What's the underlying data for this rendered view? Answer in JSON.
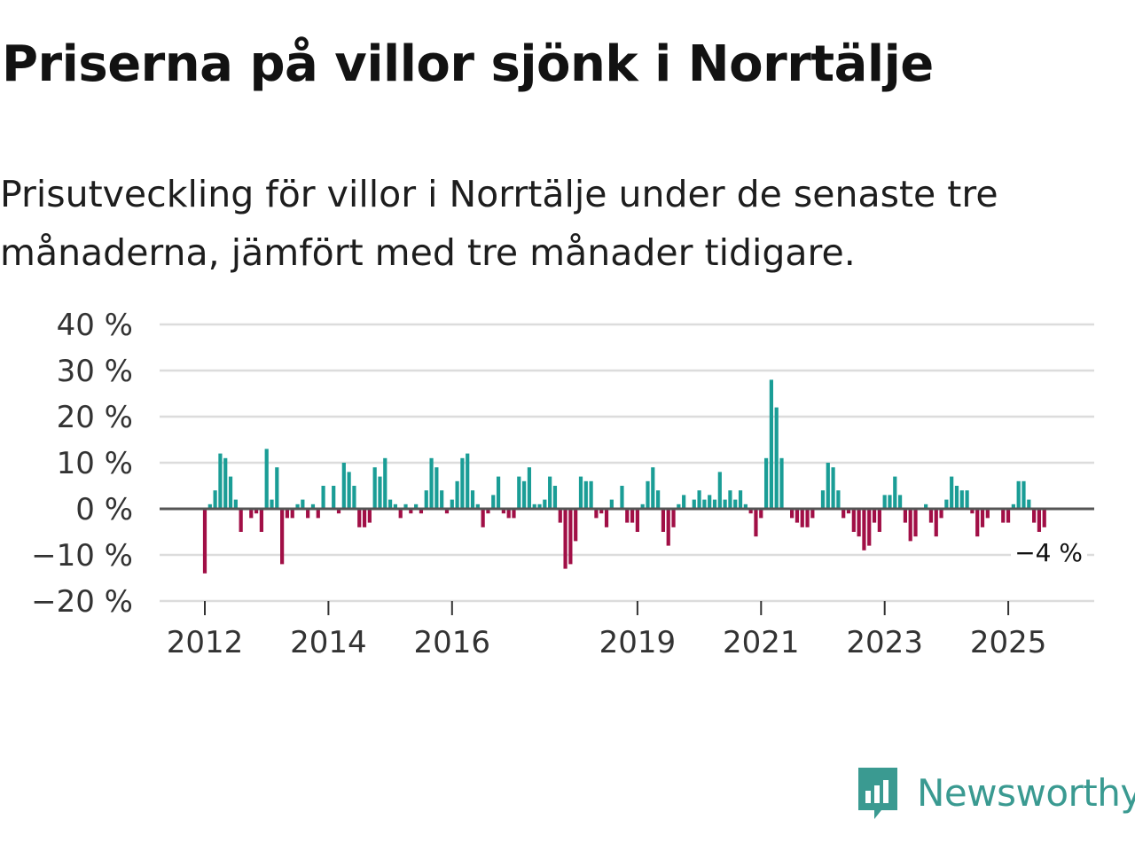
{
  "header": {
    "title": "Priserna på villor sjönk i Norrtälje",
    "subtitle": "Prisutveckling för villor i Norrtälje under de senaste tre månaderna, jämfört med tre månader tidigare."
  },
  "brand": {
    "name": "Newsworthy"
  },
  "colors": {
    "positive": "#1a9d96",
    "negative": "#a10f46",
    "grid": "#dcdcdc",
    "zero": "#555555",
    "brand": "#3a9a91"
  },
  "chart_data": {
    "type": "bar",
    "title": "Priserna på villor sjönk i Norrtälje",
    "ylabel": "",
    "xlabel": "",
    "ylim": [
      -20,
      40
    ],
    "yticks": [
      40,
      30,
      20,
      10,
      0,
      -10,
      -20
    ],
    "ytick_labels": [
      "40 %",
      "30 %",
      "20 %",
      "10 %",
      "0 %",
      "−10 %",
      "−20 %"
    ],
    "xtick_labels": [
      "2012",
      "2014",
      "2016",
      "2019",
      "2021",
      "2023",
      "2025"
    ],
    "xtick_positions": [
      2012,
      2014,
      2016,
      2019,
      2021,
      2023,
      2025
    ],
    "x_start": 2012,
    "x_step": 0.08333,
    "last_value_label": "−4 %",
    "series": [
      {
        "name": "Prisutveckling",
        "values": [
          -14,
          1,
          4,
          12,
          11,
          7,
          2,
          -5,
          0,
          -2,
          -1,
          -5,
          13,
          2,
          9,
          -12,
          -2,
          -2,
          1,
          2,
          -2,
          1,
          -2,
          5,
          0,
          5,
          -1,
          10,
          8,
          5,
          -4,
          -4,
          -3,
          9,
          7,
          11,
          2,
          1,
          -2,
          1,
          -1,
          1,
          -1,
          4,
          11,
          9,
          4,
          -1,
          2,
          6,
          11,
          12,
          4,
          1,
          -4,
          -1,
          3,
          7,
          -1,
          -2,
          -2,
          7,
          6,
          9,
          1,
          1,
          2,
          7,
          5,
          -3,
          -13,
          -12,
          -7,
          7,
          6,
          6,
          -2,
          -1,
          -4,
          2,
          0,
          5,
          -3,
          -3,
          -5,
          1,
          6,
          9,
          4,
          -5,
          -8,
          -4,
          1,
          3,
          0,
          2,
          4,
          2,
          3,
          2,
          8,
          2,
          4,
          2,
          4,
          1,
          -1,
          -6,
          -2,
          11,
          28,
          22,
          11,
          0,
          -2,
          -3,
          -4,
          -4,
          -2,
          0,
          4,
          10,
          9,
          4,
          -2,
          -1,
          -5,
          -6,
          -9,
          -8,
          -3,
          -5,
          3,
          3,
          7,
          3,
          -3,
          -7,
          -6,
          0,
          1,
          -3,
          -6,
          -2,
          2,
          7,
          5,
          4,
          4,
          -1,
          -6,
          -4,
          -2,
          0,
          0,
          -3,
          -3,
          1,
          6,
          6,
          2,
          -3,
          -5,
          -4
        ]
      }
    ]
  }
}
